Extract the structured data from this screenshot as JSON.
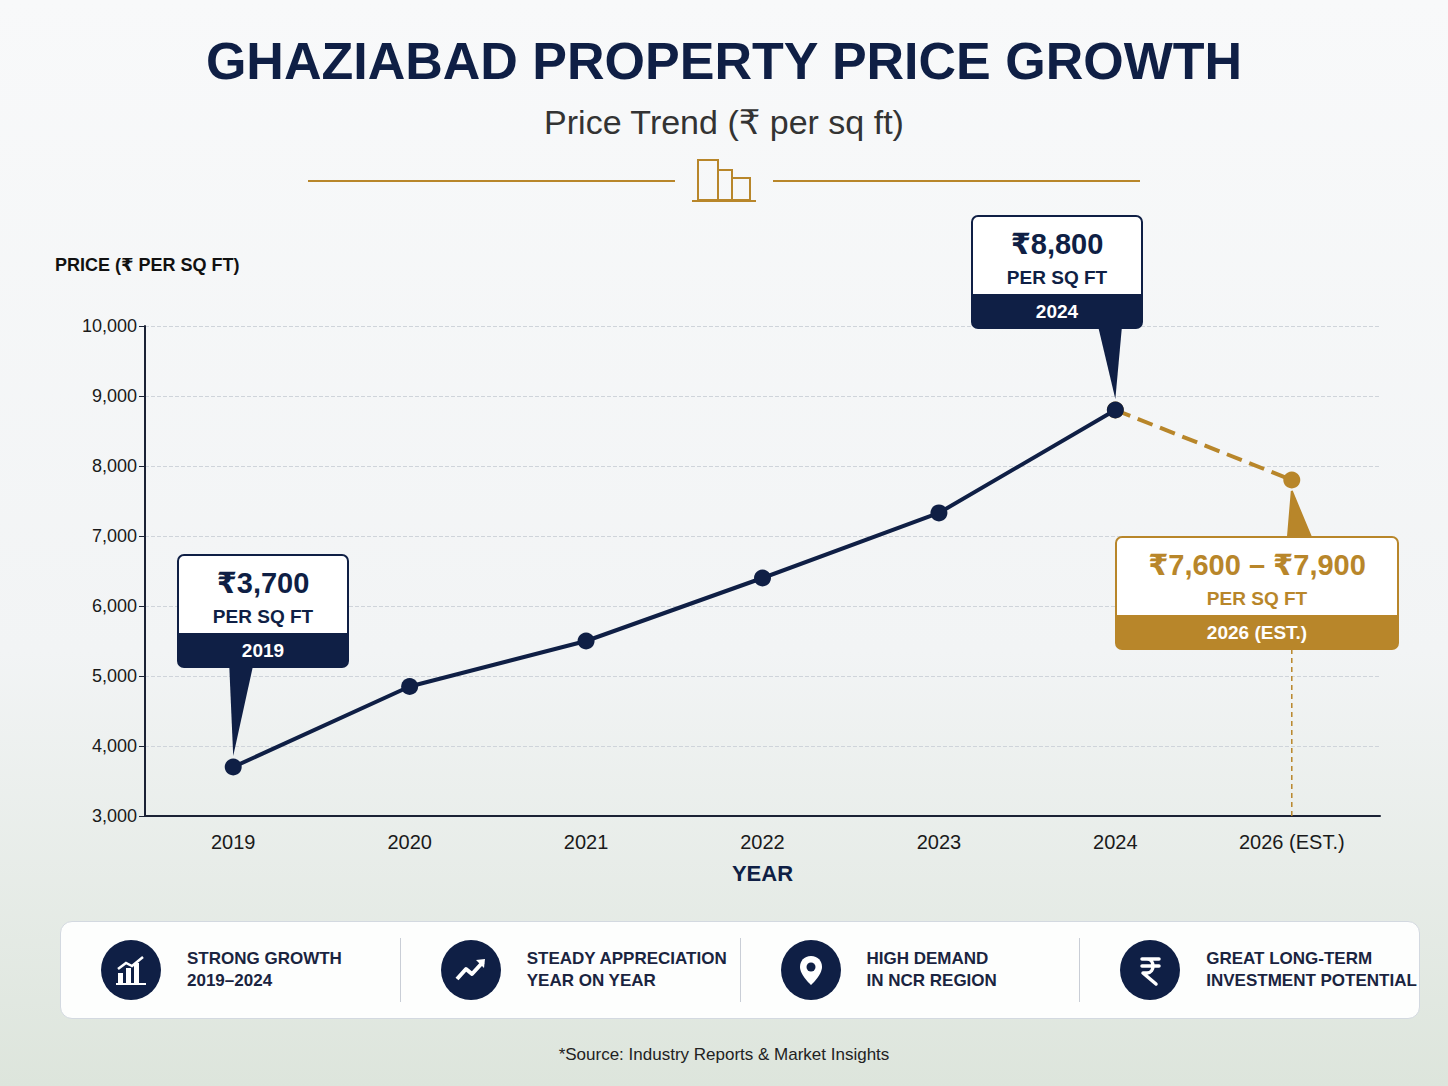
{
  "chart_data": {
    "type": "line",
    "title": "GHAZIABAD PROPERTY PRICE GROWTH",
    "subtitle": "Price Trend (₹ per sq ft)",
    "y_label": "PRICE (₹ PER SQ FT)",
    "x_label": "YEAR",
    "categories": [
      "2019",
      "2020",
      "2021",
      "2022",
      "2023",
      "2024",
      "2026 (EST.)"
    ],
    "series": [
      {
        "color": "#0f1f45",
        "line_style": "solid",
        "marker": "circle",
        "values": [
          3700,
          4850,
          5500,
          6400,
          7330,
          8800,
          null
        ]
      },
      {
        "color": "#b8862a",
        "line_style": "dashed",
        "marker": "circle",
        "values": [
          null,
          null,
          null,
          null,
          null,
          8800,
          7800
        ]
      }
    ],
    "ylim": [
      3000,
      10000
    ],
    "yticks": [
      {
        "value": 3000,
        "label": "3,000"
      },
      {
        "value": 4000,
        "label": "4,000"
      },
      {
        "value": 5000,
        "label": "5,000"
      },
      {
        "value": 6000,
        "label": "6,000"
      },
      {
        "value": 7000,
        "label": "7,000"
      },
      {
        "value": 8000,
        "label": "8,000"
      },
      {
        "value": 9000,
        "label": "9,000"
      },
      {
        "value": 10000,
        "label": "10,000"
      }
    ],
    "grid": true,
    "annotations": [
      {
        "category": "2019",
        "text": "₹3,700",
        "unit": "PER SQ FT",
        "tag": "2019"
      },
      {
        "category": "2024",
        "text": "₹8,800",
        "unit": "PER SQ FT",
        "tag": "2024"
      },
      {
        "category": "2026 (EST.)",
        "text": "₹7,600 – ₹7,900",
        "unit": "PER SQ FT",
        "tag": "2026 (EST.)"
      }
    ]
  },
  "features": [
    {
      "lines": [
        "STRONG GROWTH",
        "2019–2024"
      ]
    },
    {
      "lines": [
        "STEADY APPRECIATION",
        "YEAR ON YEAR"
      ]
    },
    {
      "lines": [
        "HIGH DEMAND",
        "IN NCR REGION"
      ]
    },
    {
      "lines": [
        "GREAT LONG-TERM",
        "INVESTMENT POTENTIAL"
      ]
    }
  ],
  "source": "*Source: Industry Reports & Market Insights"
}
